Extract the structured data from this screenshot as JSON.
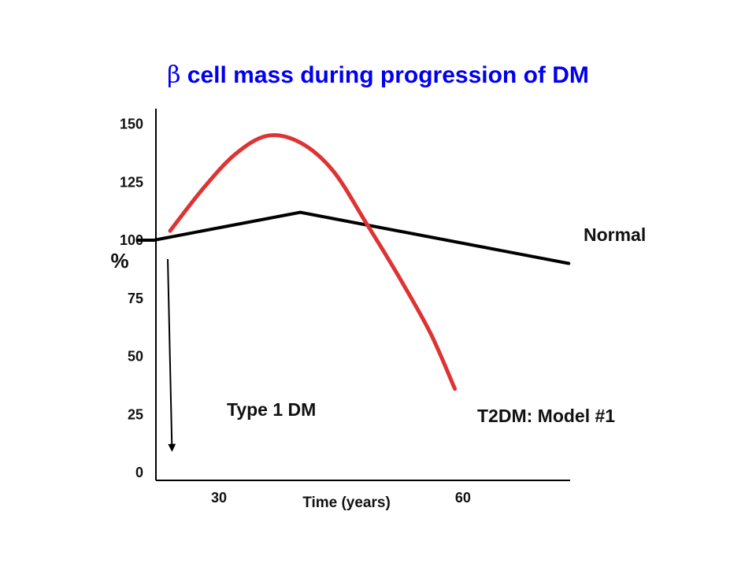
{
  "chart_data": {
    "type": "line",
    "title": "cell mass during progression of DM",
    "title_symbol": "β",
    "xlabel": "Time (years)",
    "ylabel": "%",
    "x_ticks": [
      30,
      60
    ],
    "y_ticks": [
      0,
      25,
      50,
      75,
      100,
      125,
      150
    ],
    "ylim": [
      0,
      150
    ],
    "series": [
      {
        "name": "Normal",
        "color": "#000000",
        "points": [
          [
            20,
            100
          ],
          [
            22,
            100
          ],
          [
            40,
            112
          ],
          [
            73,
            90
          ]
        ]
      },
      {
        "name": "T2DM: Model #1",
        "color": "#dd3333",
        "points": [
          [
            24,
            104
          ],
          [
            28,
            122
          ],
          [
            32,
            137
          ],
          [
            36,
            145
          ],
          [
            40,
            142
          ],
          [
            44,
            130
          ],
          [
            48,
            108
          ],
          [
            52,
            85
          ],
          [
            56,
            60
          ],
          [
            59,
            36
          ]
        ]
      }
    ],
    "annotations": [
      {
        "text": "Type 1 DM",
        "arrow_from": [
          24,
          100
        ],
        "arrow_to": [
          25,
          14
        ]
      }
    ]
  }
}
